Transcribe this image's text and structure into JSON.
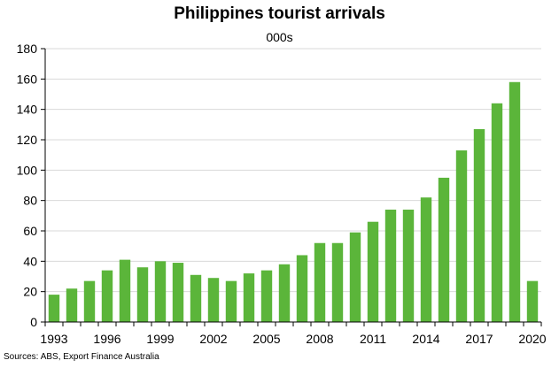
{
  "chart_data": {
    "type": "bar",
    "title": "Philippines tourist arrivals",
    "subtitle": "000s",
    "source": "Sources: ABS, Export Finance Australia",
    "xlabel": "",
    "ylabel": "",
    "categories": [
      "1993",
      "1994",
      "1995",
      "1996",
      "1997",
      "1998",
      "1999",
      "2000",
      "2001",
      "2002",
      "2003",
      "2004",
      "2005",
      "2006",
      "2007",
      "2008",
      "2009",
      "2010",
      "2011",
      "2012",
      "2013",
      "2014",
      "2015",
      "2016",
      "2017",
      "2018",
      "2019",
      "2020"
    ],
    "x_tick_labels": [
      "1993",
      "1996",
      "1999",
      "2002",
      "2005",
      "2008",
      "2011",
      "2014",
      "2017",
      "2020"
    ],
    "values": [
      18,
      22,
      27,
      34,
      41,
      36,
      40,
      39,
      31,
      29,
      27,
      32,
      34,
      38,
      44,
      52,
      52,
      59,
      66,
      74,
      74,
      82,
      95,
      113,
      127,
      144,
      158,
      27
    ],
    "y_ticks": [
      0,
      20,
      40,
      60,
      80,
      100,
      120,
      140,
      160,
      180
    ],
    "ylim": [
      0,
      180
    ],
    "grid": true,
    "legend": "none",
    "bar_color": "#5bb53a",
    "grid_color": "#d9d9d9"
  }
}
